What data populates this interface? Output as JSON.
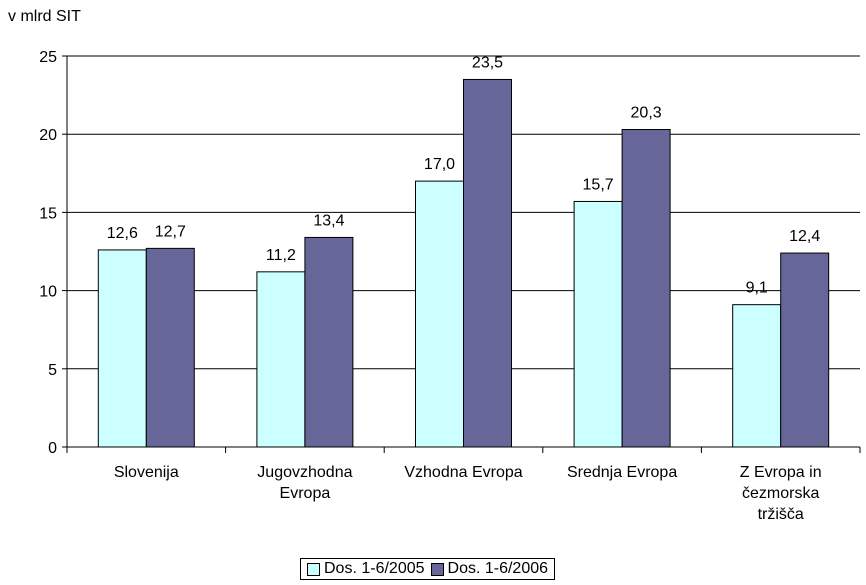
{
  "chart_data": {
    "type": "bar",
    "unit_label": "v mlrd SIT",
    "categories": [
      [
        "Slovenija"
      ],
      [
        "Jugovzhodna",
        "Evropa"
      ],
      [
        "Vzhodna Evropa"
      ],
      [
        "Srednja Evropa"
      ],
      [
        "Z Evropa in",
        "čezmorska",
        "tržišča"
      ]
    ],
    "series": [
      {
        "name": "Dos. 1-6/2005",
        "color": "#ccffff",
        "values": [
          12.6,
          11.2,
          17.0,
          15.7,
          9.1
        ],
        "labels": [
          "12,6",
          "11,2",
          "17,0",
          "15,7",
          "9,1"
        ]
      },
      {
        "name": "Dos. 1-6/2006",
        "color": "#666699",
        "values": [
          12.7,
          13.4,
          23.5,
          20.3,
          12.4
        ],
        "labels": [
          "12,7",
          "13,4",
          "23,5",
          "20,3",
          "12,4"
        ]
      }
    ],
    "ylim": [
      0,
      25
    ],
    "yticks": [
      "0",
      "5",
      "10",
      "15",
      "20",
      "25"
    ],
    "grid": true,
    "legend_position": "bottom"
  }
}
